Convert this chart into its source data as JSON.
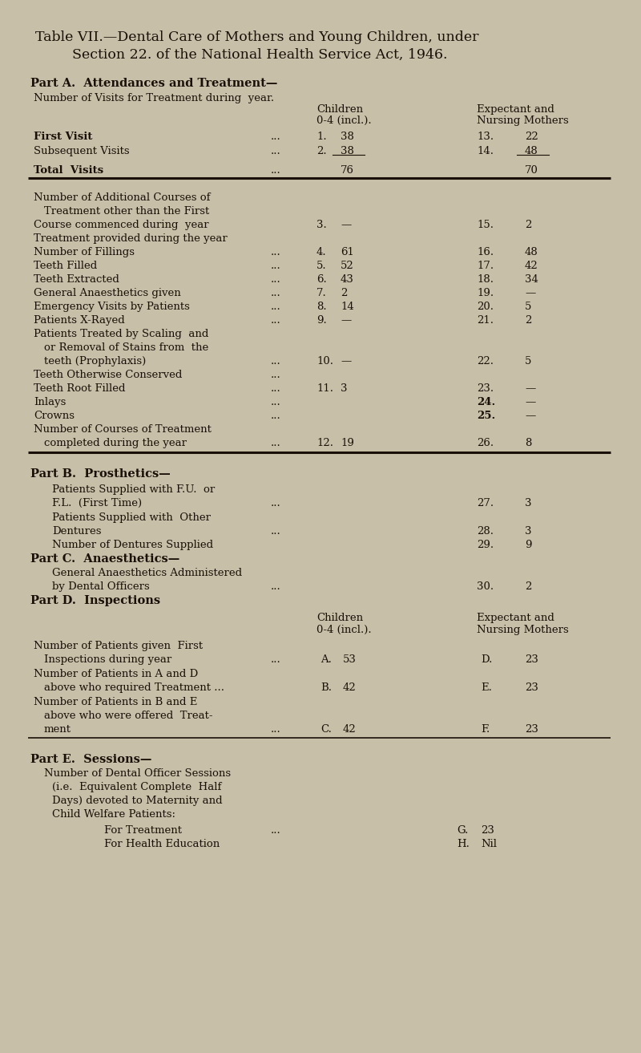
{
  "bg_color": "#c8bfa8",
  "text_color": "#1a1008",
  "title_line1": "Table VII.—Dental Care of Mothers and Young Children, under",
  "title_line2": "Section 22. of the National Health Service Act, 1946.",
  "part_a_header": "Part A.  Attendances and Treatment—",
  "col_header1": "Number of Visits for Treatment during  year.",
  "col_header2_a": "Children",
  "col_header2_b": "0-4 (incl.).",
  "col_header3_a": "Expectant and",
  "col_header3_b": "Nursing Mothers",
  "part_b_header": "Part B.  Prosthetics—",
  "part_c_header": "Part C.  Anaesthetics—",
  "part_d_header": "Part D.  Inspections",
  "part_e_header": "Part E.  Sessions—",
  "col_d_header1": "Children",
  "col_d_header2": "0-4 (incl.).",
  "col_d_header3": "Expectant and",
  "col_d_header4": "Nursing Mothers"
}
